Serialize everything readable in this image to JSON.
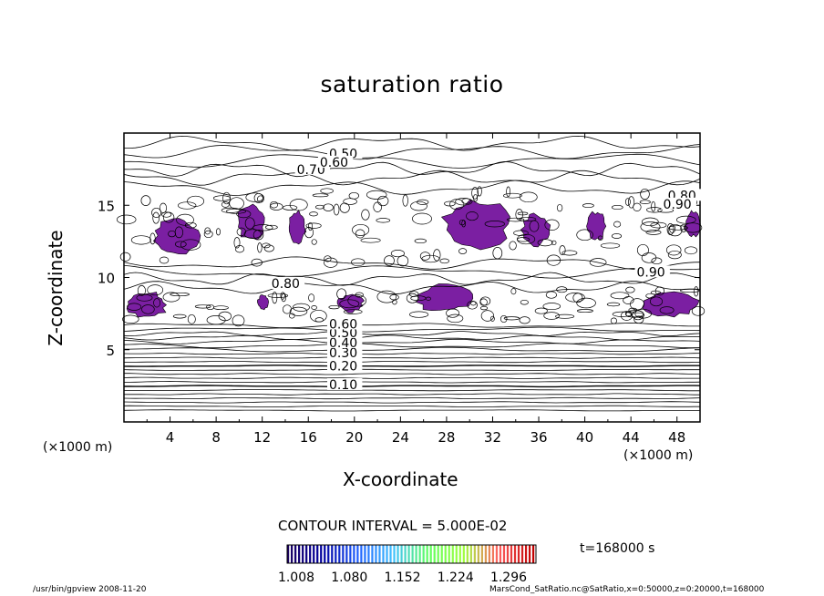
{
  "chart_data": {
    "type": "contour",
    "title": "saturation ratio",
    "xlabel": "X-coordinate",
    "ylabel": "Z-coordinate",
    "x_unit": "(×1000 m)",
    "y_unit": "(×1000 m)",
    "xlim": [
      0,
      50
    ],
    "ylim": [
      0,
      20
    ],
    "xticks": [
      4,
      8,
      12,
      16,
      20,
      24,
      28,
      32,
      36,
      40,
      44,
      48
    ],
    "yticks": [
      5,
      10,
      15
    ],
    "contour_labels": [
      {
        "text": "0.10",
        "x": 17.8,
        "z": 2.4
      },
      {
        "text": "0.20",
        "x": 17.8,
        "z": 3.7
      },
      {
        "text": "0.30",
        "x": 17.8,
        "z": 4.6
      },
      {
        "text": "0.40",
        "x": 17.8,
        "z": 5.3
      },
      {
        "text": "0.50",
        "x": 17.8,
        "z": 6.0
      },
      {
        "text": "0.60",
        "x": 17.8,
        "z": 6.6
      },
      {
        "text": "0.50",
        "x": 17.8,
        "z": 18.4
      },
      {
        "text": "0.70",
        "x": 15.0,
        "z": 17.3
      },
      {
        "text": "0.60",
        "x": 17.0,
        "z": 17.8
      },
      {
        "text": "0.80",
        "x": 47.2,
        "z": 15.5
      },
      {
        "text": "0.90",
        "x": 46.8,
        "z": 14.9
      },
      {
        "text": "0.90",
        "x": 44.5,
        "z": 10.2
      },
      {
        "text": "0.80",
        "x": 12.8,
        "z": 9.4
      }
    ],
    "contour_interval": "CONTOUR INTERVAL = 5.000E-02",
    "shading_colorbar": {
      "ticks": [
        "1.008",
        "1.080",
        "1.152",
        "1.224",
        "1.296"
      ],
      "colors": [
        "#1a0060",
        "#0000a0",
        "#2060ff",
        "#40c0ff",
        "#60ff60",
        "#a0ff40",
        "#ff6060",
        "#c00000"
      ]
    },
    "shaded_color": "#7b1fa2",
    "grid": false
  },
  "time_label": "t=168000 s",
  "footer": {
    "left": "/usr/bin/gpview 2008-11-20",
    "right": "MarsCond_SatRatio.nc@SatRatio,x=0:50000,z=0:20000,t=168000"
  }
}
